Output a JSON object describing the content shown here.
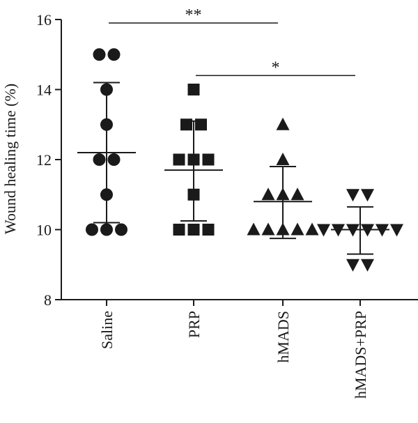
{
  "chart_data": {
    "type": "scatter",
    "ylabel": "Wound healing time (%)",
    "ylim": [
      8,
      16
    ],
    "yticks": [
      8,
      10,
      12,
      14,
      16
    ],
    "categories": [
      "Saline",
      "PRP",
      "hMADS",
      "hMADS+PRP"
    ],
    "series": [
      {
        "marker": "circle",
        "values": [
          15,
          15,
          14,
          13,
          12,
          12,
          11,
          10,
          10,
          10
        ],
        "mean": 12.2,
        "error_low": 10.2,
        "error_high": 14.2
      },
      {
        "marker": "square",
        "values": [
          14,
          13,
          13,
          12,
          12,
          12,
          11,
          10,
          10,
          10
        ],
        "mean": 11.7,
        "error_low": 10.25,
        "error_high": 13.1
      },
      {
        "marker": "triangle-up",
        "values": [
          13,
          12,
          11,
          11,
          11,
          10,
          10,
          10,
          10,
          10
        ],
        "mean": 10.8,
        "error_low": 9.75,
        "error_high": 11.8
      },
      {
        "marker": "triangle-down",
        "values": [
          11,
          11,
          10,
          10,
          10,
          10,
          10,
          10,
          9,
          9
        ],
        "mean": 10.0,
        "error_low": 9.3,
        "error_high": 10.65
      }
    ],
    "significance": [
      {
        "from": 0,
        "to": 2,
        "label": "**",
        "y": 15.9
      },
      {
        "from": 1,
        "to": 3,
        "label": "*",
        "y": 14.4
      }
    ],
    "colors": {
      "marker": "#1a1a1a",
      "axis": "#1a1a1a"
    }
  }
}
